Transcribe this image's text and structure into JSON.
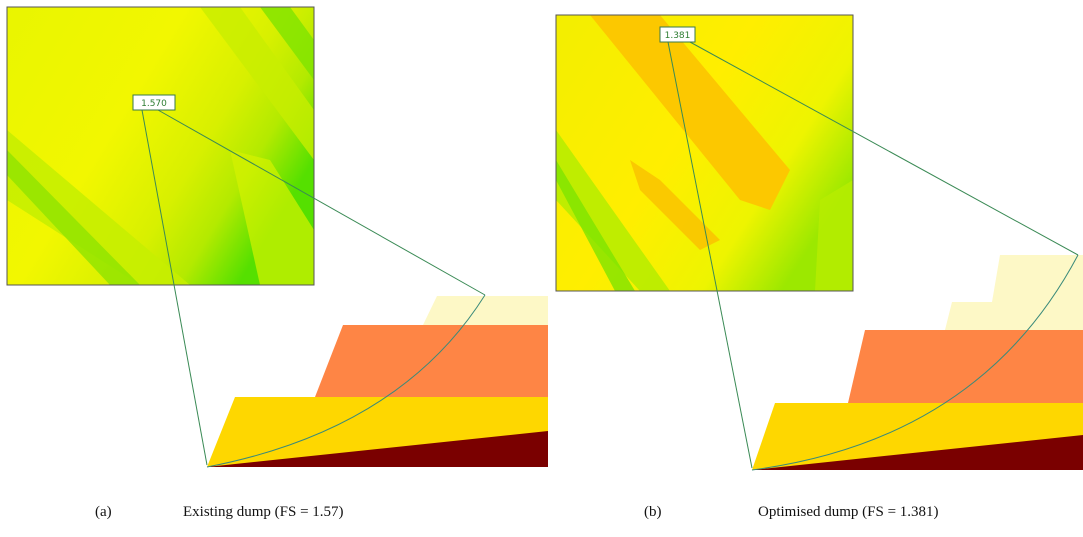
{
  "panels": [
    {
      "fs_label": "1.570",
      "letter": "(a)",
      "caption": "Existing dump (FS = 1.57)"
    },
    {
      "fs_label": "1.381",
      "letter": "(b)",
      "caption": "Optimised dump (FS = 1.381)"
    }
  ]
}
